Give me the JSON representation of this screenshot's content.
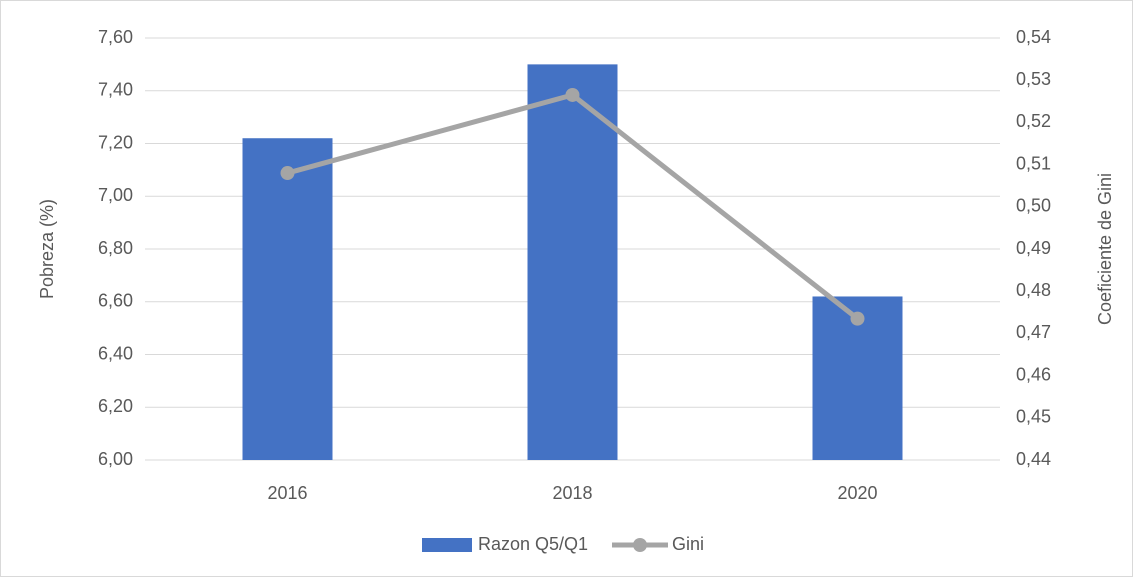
{
  "chart_data": {
    "type": "bar",
    "categories": [
      "2016",
      "2018",
      "2020"
    ],
    "series": [
      {
        "name": "Razon Q5/Q1",
        "type": "bar",
        "color": "#4472c4",
        "values": [
          7.22,
          7.5,
          6.62
        ]
      },
      {
        "name": "Gini",
        "type": "line",
        "axis": "y2",
        "color": "#a5a5a5",
        "values": [
          0.508,
          0.5265,
          0.4735
        ]
      }
    ],
    "ylabel": "Pobreza (%)",
    "y2label": "Coeficiente de Gini",
    "ylim": [
      6.0,
      7.6
    ],
    "yticks": [
      {
        "value": 6.0,
        "label": "6,00"
      },
      {
        "value": 6.2,
        "label": "6,20"
      },
      {
        "value": 6.4,
        "label": "6,40"
      },
      {
        "value": 6.6,
        "label": "6,60"
      },
      {
        "value": 6.8,
        "label": "6,80"
      },
      {
        "value": 7.0,
        "label": "7,00"
      },
      {
        "value": 7.2,
        "label": "7,20"
      },
      {
        "value": 7.4,
        "label": "7,40"
      },
      {
        "value": 7.6,
        "label": "7,60"
      }
    ],
    "y2lim": [
      0.44,
      0.54
    ],
    "y2ticks": [
      {
        "value": 0.44,
        "label": "0,44"
      },
      {
        "value": 0.45,
        "label": "0,45"
      },
      {
        "value": 0.46,
        "label": "0,46"
      },
      {
        "value": 0.47,
        "label": "0,47"
      },
      {
        "value": 0.48,
        "label": "0,48"
      },
      {
        "value": 0.49,
        "label": "0,49"
      },
      {
        "value": 0.5,
        "label": "0,50"
      },
      {
        "value": 0.51,
        "label": "0,51"
      },
      {
        "value": 0.52,
        "label": "0,52"
      },
      {
        "value": 0.53,
        "label": "0,53"
      },
      {
        "value": 0.54,
        "label": "0,54"
      }
    ],
    "grid": true,
    "legend": "bottom"
  }
}
